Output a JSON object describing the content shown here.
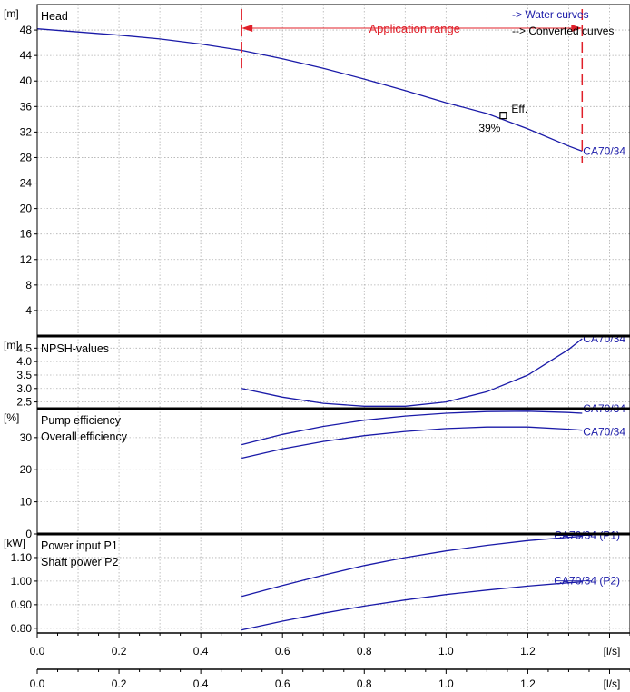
{
  "chart_data": {
    "type": "line",
    "colors": {
      "curve": "#1a1aa8",
      "range": "#e0202a",
      "grid": "#b0b0b0"
    },
    "legend": {
      "water": "-> Water curves",
      "converted": "--> Converted curves"
    },
    "application_range": {
      "label": "Application range",
      "x": [
        0.5,
        1.333
      ]
    },
    "x_axis": {
      "unit": "[l/s]",
      "range": [
        0.0,
        1.45
      ],
      "ticks": [
        0.0,
        0.2,
        0.4,
        0.6,
        0.8,
        1.0,
        1.2
      ],
      "tick_labels": [
        "0.0",
        "0.2",
        "0.4",
        "0.6",
        "0.8",
        "1.0",
        "1.2"
      ]
    },
    "panels": [
      {
        "name": "head",
        "title": "Head",
        "unit": "[m]",
        "ylim": [
          0,
          52
        ],
        "yticks": [
          4,
          8,
          12,
          16,
          20,
          24,
          28,
          32,
          36,
          40,
          44,
          48
        ],
        "ytick_labels": [
          "4",
          "8",
          "12",
          "16",
          "20",
          "24",
          "28",
          "32",
          "36",
          "40",
          "44",
          "48"
        ],
        "series": [
          {
            "name": "CA70/34",
            "x": [
              0.0,
              0.1,
              0.2,
              0.3,
              0.4,
              0.5,
              0.6,
              0.7,
              0.8,
              0.9,
              1.0,
              1.1,
              1.2,
              1.3,
              1.333
            ],
            "y": [
              48.2,
              47.7,
              47.2,
              46.6,
              45.8,
              44.8,
              43.5,
              42.0,
              40.3,
              38.5,
              36.6,
              34.9,
              32.5,
              29.8,
              29.0
            ]
          }
        ],
        "annotation": {
          "label": "Eff.",
          "value": "39%",
          "x": 1.14,
          "y": 34.6
        }
      },
      {
        "name": "npsh",
        "title": "NPSH-values",
        "unit": "[m]",
        "ylim": [
          2.25,
          4.95
        ],
        "yticks": [
          2.5,
          3.0,
          3.5,
          4.0,
          4.5
        ],
        "ytick_labels": [
          "2.5",
          "3.0",
          "3.5",
          "4.0",
          "4.5"
        ],
        "series": [
          {
            "name": "CA70/34",
            "x": [
              0.5,
              0.6,
              0.7,
              0.8,
              0.9,
              1.0,
              1.1,
              1.2,
              1.3,
              1.333
            ],
            "y": [
              3.0,
              2.68,
              2.45,
              2.34,
              2.34,
              2.5,
              2.88,
              3.5,
              4.45,
              4.85
            ]
          }
        ]
      },
      {
        "name": "efficiency",
        "title": "Pump efficiency",
        "title2": "Overall efficiency",
        "unit": "[%]",
        "ylim": [
          0,
          39
        ],
        "yticks": [
          0,
          10,
          20,
          30
        ],
        "ytick_labels": [
          "0",
          "10",
          "20",
          "30"
        ],
        "series": [
          {
            "name": "CA70/34",
            "x": [
              0.5,
              0.6,
              0.7,
              0.8,
              0.9,
              1.0,
              1.1,
              1.2,
              1.3,
              1.333
            ],
            "y": [
              27.8,
              31.0,
              33.5,
              35.4,
              36.7,
              37.6,
              38.1,
              38.2,
              37.8,
              37.6
            ]
          },
          {
            "name": "CA70/34",
            "x": [
              0.5,
              0.6,
              0.7,
              0.8,
              0.9,
              1.0,
              1.1,
              1.2,
              1.3,
              1.333
            ],
            "y": [
              23.6,
              26.5,
              28.8,
              30.6,
              31.9,
              32.8,
              33.3,
              33.3,
              32.6,
              32.3
            ]
          }
        ]
      },
      {
        "name": "power",
        "title": "Power input P1",
        "title2": "Shaft power P2",
        "unit": "[kW]",
        "ylim": [
          0.78,
          1.2
        ],
        "yticks": [
          0.8,
          0.9,
          1.0,
          1.1
        ],
        "ytick_labels": [
          "0.80",
          "0.90",
          "1.00",
          "1.10"
        ],
        "series": [
          {
            "name": "CA70/34 (P1)",
            "x": [
              0.5,
              0.6,
              0.7,
              0.8,
              0.9,
              1.0,
              1.1,
              1.2,
              1.3,
              1.333
            ],
            "y": [
              0.935,
              0.981,
              1.025,
              1.066,
              1.1,
              1.128,
              1.152,
              1.172,
              1.186,
              1.19
            ]
          },
          {
            "name": "CA70/34 (P2)",
            "x": [
              0.5,
              0.6,
              0.7,
              0.8,
              0.9,
              1.0,
              1.1,
              1.2,
              1.3,
              1.333
            ],
            "y": [
              0.793,
              0.83,
              0.864,
              0.894,
              0.92,
              0.943,
              0.962,
              0.979,
              0.993,
              0.997
            ]
          }
        ]
      }
    ]
  }
}
